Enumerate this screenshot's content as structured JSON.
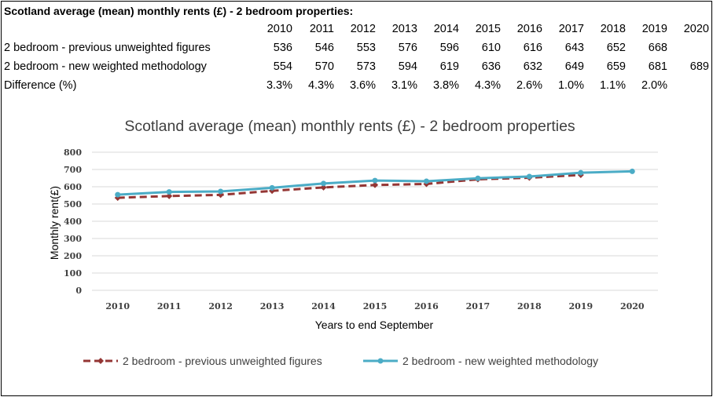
{
  "table": {
    "title": "Scotland average (mean) monthly rents (£) - 2 bedroom properties:",
    "years": [
      "2010",
      "2011",
      "2012",
      "2013",
      "2014",
      "2015",
      "2016",
      "2017",
      "2018",
      "2019",
      "2020"
    ],
    "rows": [
      {
        "label": "2 bedroom - previous unweighted figures",
        "values": [
          "536",
          "546",
          "553",
          "576",
          "596",
          "610",
          "616",
          "643",
          "652",
          "668",
          ""
        ]
      },
      {
        "label": "2 bedroom - new weighted methodology",
        "values": [
          "554",
          "570",
          "573",
          "594",
          "619",
          "636",
          "632",
          "649",
          "659",
          "681",
          "689"
        ]
      },
      {
        "label": "Difference (%)",
        "values": [
          "3.3%",
          "4.3%",
          "3.6%",
          "3.1%",
          "3.8%",
          "4.3%",
          "2.6%",
          "1.0%",
          "1.1%",
          "2.0%",
          ""
        ]
      }
    ]
  },
  "chart_data": {
    "type": "line",
    "title": "Scotland average (mean) monthly rents (£) - 2 bedroom properties",
    "xlabel": "Years to end September",
    "ylabel": "Monthly rent(£)",
    "categories": [
      "2010",
      "2011",
      "2012",
      "2013",
      "2014",
      "2015",
      "2016",
      "2017",
      "2018",
      "2019",
      "2020"
    ],
    "ylim": [
      0,
      800
    ],
    "yticks": [
      0,
      100,
      200,
      300,
      400,
      500,
      600,
      700,
      800
    ],
    "grid": true,
    "legend": "bottom",
    "series": [
      {
        "name": "2 bedroom - previous unweighted figures",
        "color": "#943634",
        "style": "dashed",
        "marker": "diamond",
        "values": [
          536,
          546,
          553,
          576,
          596,
          610,
          616,
          643,
          652,
          668,
          null
        ]
      },
      {
        "name": "2 bedroom - new weighted methodology",
        "color": "#4BACC6",
        "style": "solid",
        "marker": "circle",
        "values": [
          554,
          570,
          573,
          594,
          619,
          636,
          632,
          649,
          659,
          681,
          689
        ]
      }
    ]
  }
}
